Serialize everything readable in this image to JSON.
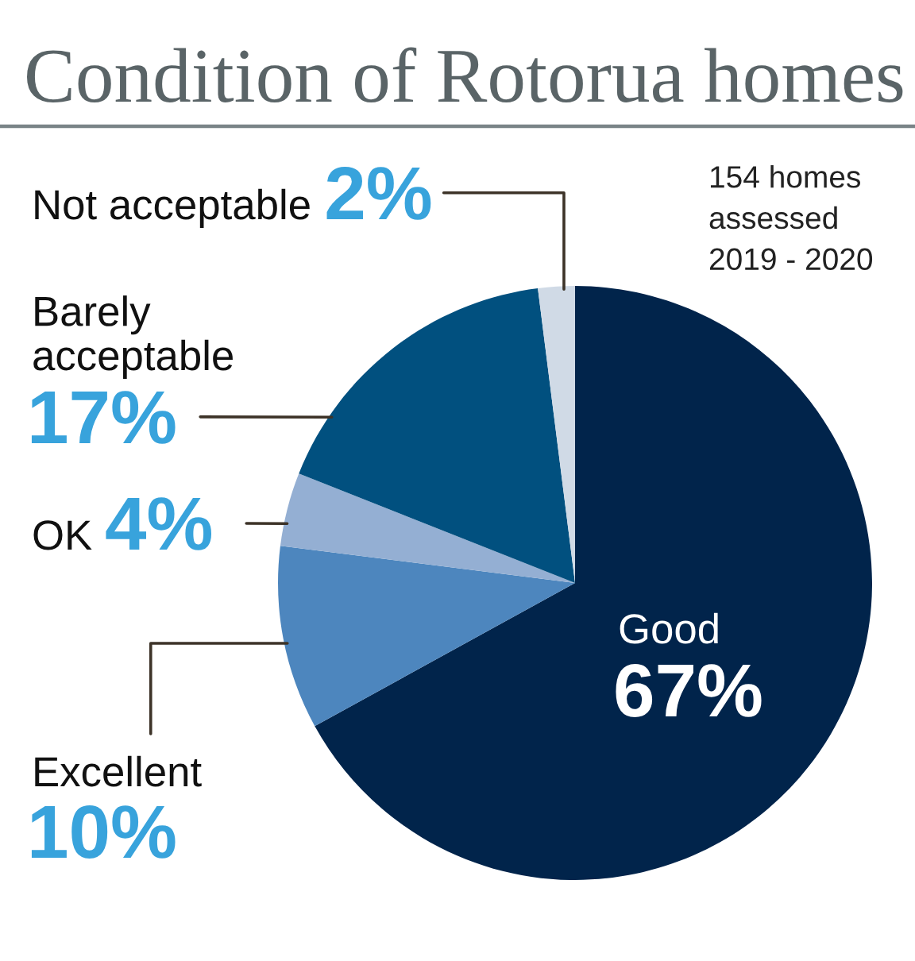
{
  "chart_data": {
    "type": "pie",
    "title": "Condition of Rotorua homes",
    "categories": [
      "Good",
      "Excellent",
      "OK",
      "Barely\nacceptable",
      "Not acceptable"
    ],
    "values": [
      67,
      10,
      4,
      17,
      2
    ],
    "colors": [
      "#01244b",
      "#4d86be",
      "#94afd3",
      "#01507f",
      "#d0dae6"
    ],
    "value_labels": [
      "67%",
      "10%",
      "4%",
      "17%",
      "2%"
    ],
    "annotations": [
      "154 homes\nassessed\n2019 - 2020"
    ]
  }
}
